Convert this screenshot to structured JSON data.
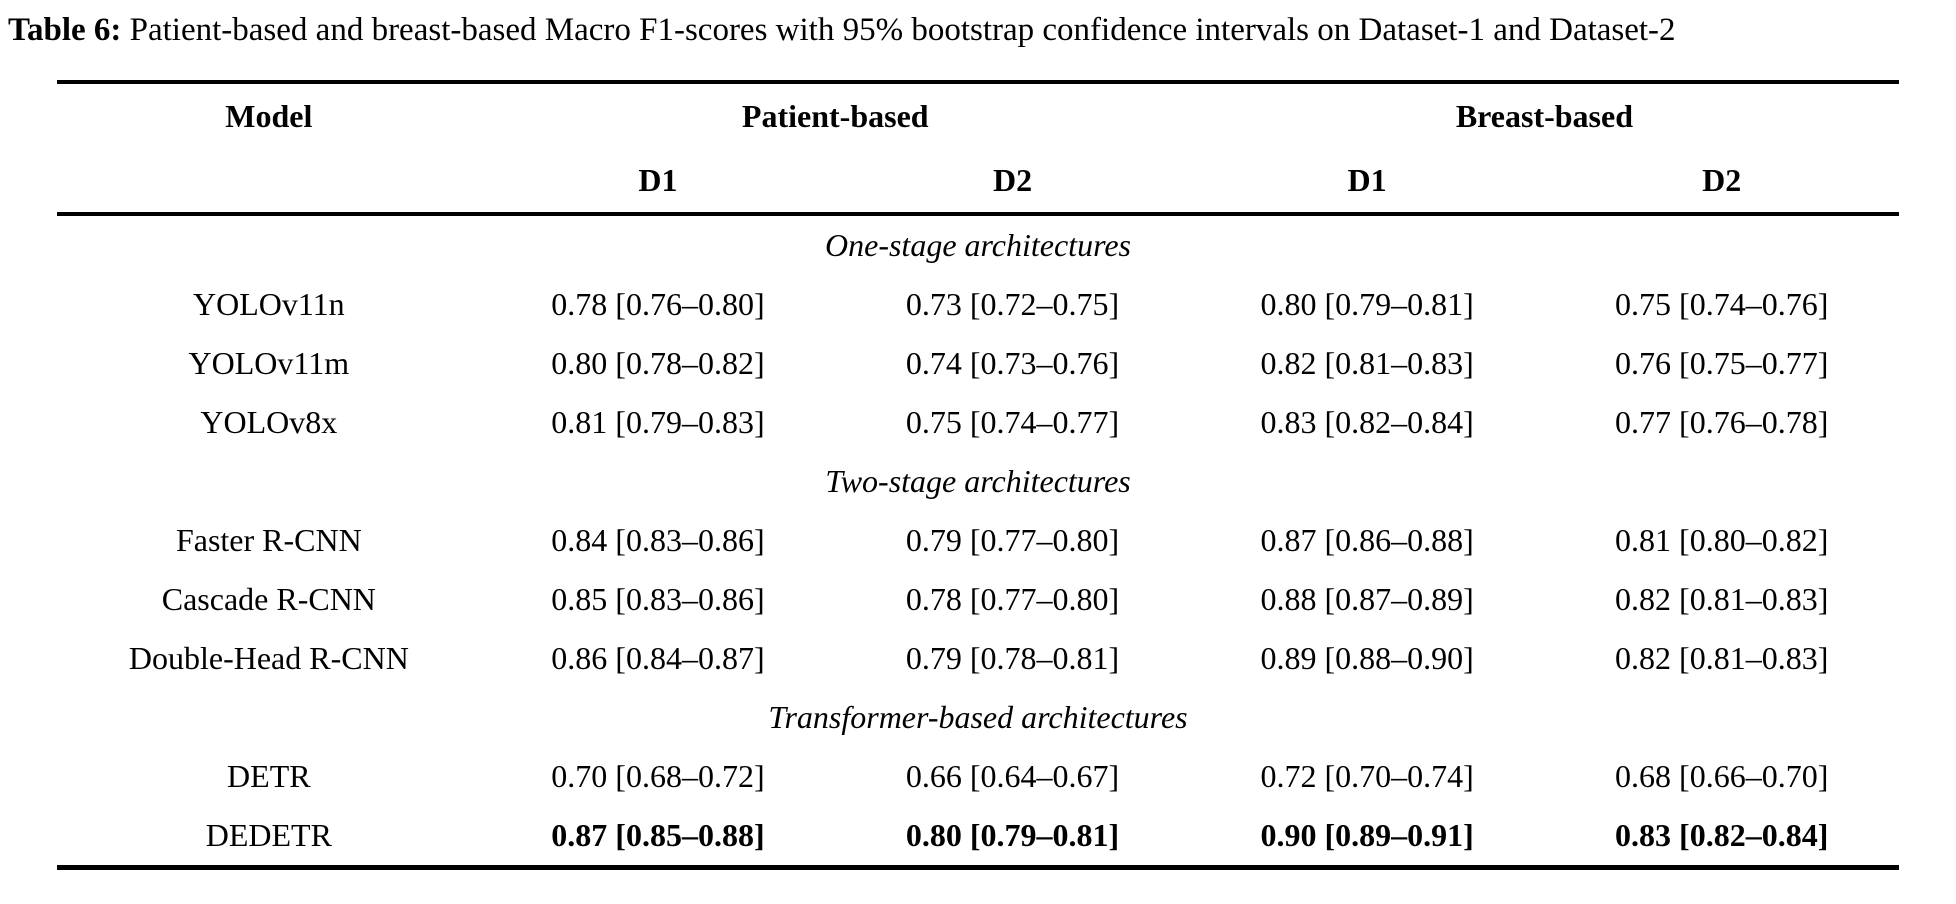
{
  "page": {
    "background_color": "#ffffff",
    "text_color": "#000000"
  },
  "caption": {
    "label": "Table 6:",
    "text": "Patient-based and breast-based Macro F1-scores with 95% bootstrap confidence intervals on Dataset-1 and Dataset-2"
  },
  "table": {
    "header": {
      "model": "Model",
      "patient_group": "Patient-based",
      "breast_group": "Breast-based",
      "patient_d1": "D1",
      "patient_d2": "D2",
      "breast_d1": "D1",
      "breast_d2": "D2"
    },
    "sections": [
      {
        "title": "One-stage architectures",
        "rows": [
          {
            "model": "YOLOv11n",
            "patient_d1": "0.78 [0.76–0.80]",
            "patient_d2": "0.73 [0.72–0.75]",
            "breast_d1": "0.80 [0.79–0.81]",
            "breast_d2": "0.75 [0.74–0.76]"
          },
          {
            "model": "YOLOv11m",
            "patient_d1": "0.80 [0.78–0.82]",
            "patient_d2": "0.74 [0.73–0.76]",
            "breast_d1": "0.82 [0.81–0.83]",
            "breast_d2": "0.76 [0.75–0.77]"
          },
          {
            "model": "YOLOv8x",
            "patient_d1": "0.81 [0.79–0.83]",
            "patient_d2": "0.75 [0.74–0.77]",
            "breast_d1": "0.83 [0.82–0.84]",
            "breast_d2": "0.77 [0.76–0.78]"
          }
        ]
      },
      {
        "title": "Two-stage architectures",
        "rows": [
          {
            "model": "Faster R-CNN",
            "patient_d1": "0.84 [0.83–0.86]",
            "patient_d2": "0.79 [0.77–0.80]",
            "breast_d1": "0.87 [0.86–0.88]",
            "breast_d2": "0.81 [0.80–0.82]"
          },
          {
            "model": "Cascade R-CNN",
            "patient_d1": "0.85 [0.83–0.86]",
            "patient_d2": "0.78 [0.77–0.80]",
            "breast_d1": "0.88 [0.87–0.89]",
            "breast_d2": "0.82 [0.81–0.83]"
          },
          {
            "model": "Double-Head R-CNN",
            "patient_d1": "0.86 [0.84–0.87]",
            "patient_d2": "0.79 [0.78–0.81]",
            "breast_d1": "0.89 [0.88–0.90]",
            "breast_d2": "0.82 [0.81–0.83]"
          }
        ]
      },
      {
        "title": "Transformer-based architectures",
        "rows": [
          {
            "model": "DETR",
            "patient_d1": "0.70 [0.68–0.72]",
            "patient_d2": "0.66 [0.64–0.67]",
            "breast_d1": "0.72 [0.70–0.74]",
            "breast_d2": "0.68 [0.66–0.70]"
          },
          {
            "model": "DEDETR",
            "patient_d1": "0.87 [0.85–0.88]",
            "patient_d2": "0.80 [0.79–0.81]",
            "breast_d1": "0.90 [0.89–0.91]",
            "breast_d2": "0.83 [0.82–0.84]",
            "values_bold": true
          }
        ]
      }
    ]
  }
}
